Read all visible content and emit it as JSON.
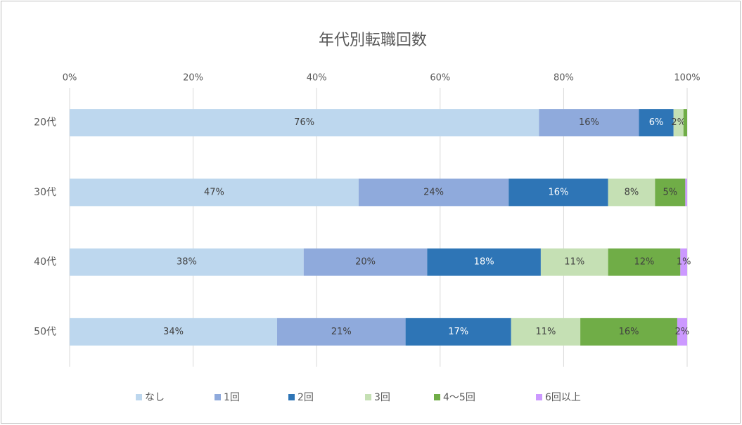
{
  "chart_data": {
    "type": "stacked-barh",
    "title": "年代別転職回数",
    "categories": [
      "20代",
      "30代",
      "40代",
      "50代"
    ],
    "xlim": [
      0,
      100
    ],
    "xticks": [
      {
        "value": 0,
        "label": "0%"
      },
      {
        "value": 20,
        "label": "20%"
      },
      {
        "value": 40,
        "label": "40%"
      },
      {
        "value": 60,
        "label": "60%"
      },
      {
        "value": 80,
        "label": "80%"
      },
      {
        "value": 100,
        "label": "100%"
      }
    ],
    "grid": true,
    "legend": "bottom",
    "series": [
      {
        "name": "なし",
        "color": "#bdd7ee",
        "values": [
          76.0,
          46.8,
          37.9,
          33.6
        ],
        "value_labels": [
          "76%",
          "47%",
          "38%",
          "34%"
        ]
      },
      {
        "name": "1回",
        "color": "#8faadc",
        "values": [
          16.2,
          24.3,
          20.0,
          20.8
        ],
        "value_labels": [
          "16%",
          "24%",
          "20%",
          "21%"
        ]
      },
      {
        "name": "2回",
        "color": "#2e75b6",
        "values": [
          5.6,
          16.1,
          18.4,
          17.1
        ],
        "value_labels": [
          "6%",
          "16%",
          "18%",
          "17%"
        ]
      },
      {
        "name": "3回",
        "color": "#c5e0b4",
        "values": [
          1.6,
          7.6,
          10.9,
          11.2
        ],
        "value_labels": [
          "2%",
          "8%",
          "11%",
          "11%"
        ]
      },
      {
        "name": "4～5回",
        "color": "#70ad47",
        "values": [
          0.6,
          4.9,
          11.7,
          15.7
        ],
        "value_labels": [
          null,
          "5%",
          "12%",
          "16%"
        ]
      },
      {
        "name": "6回以上",
        "color": "#cc99ff",
        "values": [
          0,
          0.3,
          1.1,
          1.6
        ],
        "value_labels": [
          null,
          null,
          "1%",
          "2%"
        ]
      }
    ]
  }
}
